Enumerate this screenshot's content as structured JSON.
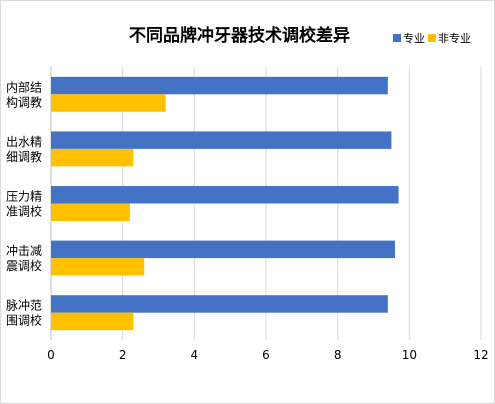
{
  "chart_data": {
    "type": "bar",
    "orientation": "horizontal",
    "title": "不同品牌冲牙器技术调校差异",
    "categories": [
      "内部结构调教",
      "出水精细调教",
      "压力精准调校",
      "冲击减震调校",
      "脉冲范围调校"
    ],
    "category_lines": [
      [
        "内部结",
        "构调教"
      ],
      [
        "出水精",
        "细调教"
      ],
      [
        "压力精",
        "准调校"
      ],
      [
        "冲击减",
        "震调校"
      ],
      [
        "脉冲范",
        "围调校"
      ]
    ],
    "series": [
      {
        "name": "专业",
        "color": "#4472C4",
        "values": [
          9.4,
          9.5,
          9.7,
          9.6,
          9.4
        ]
      },
      {
        "name": "非专业",
        "color": "#FFC000",
        "values": [
          3.2,
          2.3,
          2.2,
          2.6,
          2.3
        ]
      }
    ],
    "xlim": [
      0,
      12
    ],
    "xticks": [
      0,
      2,
      4,
      6,
      8,
      10,
      12
    ],
    "grid": true,
    "legend_position": "top-right",
    "xlabel": "",
    "ylabel": ""
  }
}
